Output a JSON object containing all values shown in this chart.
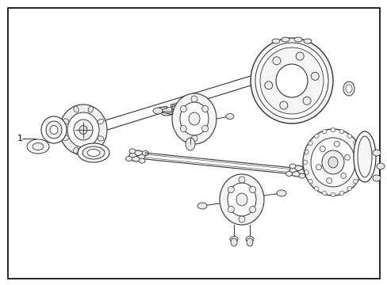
{
  "background_color": "#ffffff",
  "border_color": "#000000",
  "border_linewidth": 1.2,
  "label_text": "1-",
  "label_fontsize": 8,
  "line_color": "#333333",
  "line_width": 0.7,
  "figure_width": 4.89,
  "figure_height": 3.6,
  "dpi": 100
}
